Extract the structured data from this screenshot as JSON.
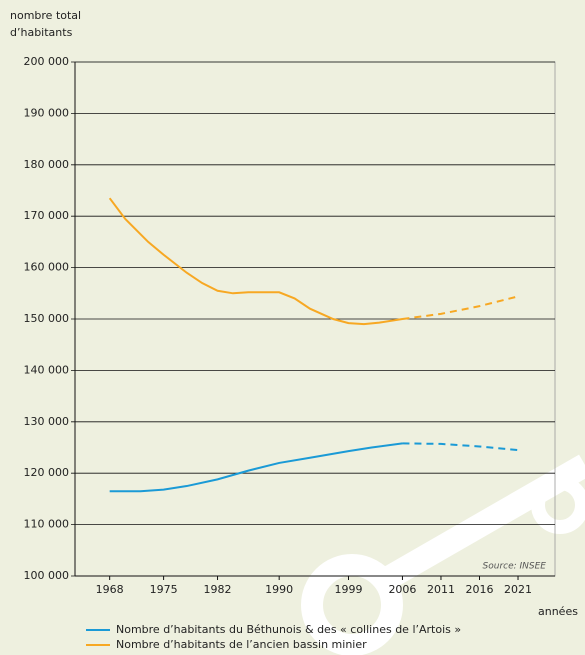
{
  "chart_data": {
    "type": "line",
    "ylabel": [
      "nombre total",
      "d’habitants"
    ],
    "xlabel": "années",
    "source": "Source: INSEE",
    "xlim": [
      1963.5,
      2025.8
    ],
    "xticks": [
      1968,
      1975,
      1982,
      1990,
      1999,
      2006,
      2011,
      2016,
      2021
    ],
    "ylim": [
      100000,
      200000
    ],
    "yticks": [
      {
        "value": 100000,
        "label": "100 000"
      },
      {
        "value": 110000,
        "label": "110 000"
      },
      {
        "value": 120000,
        "label": "120 000"
      },
      {
        "value": 130000,
        "label": "130 000"
      },
      {
        "value": 140000,
        "label": "140 000"
      },
      {
        "value": 150000,
        "label": "150 000"
      },
      {
        "value": 160000,
        "label": "160 000"
      },
      {
        "value": 170000,
        "label": "170 000"
      },
      {
        "value": 180000,
        "label": "180 000"
      },
      {
        "value": 190000,
        "label": "190 000"
      },
      {
        "value": 200000,
        "label": "200 000"
      }
    ],
    "grid": true,
    "projection_start": 2006,
    "series": [
      {
        "name": "Nombre d’habitants du Béthunois & des « collines de l’Artois »",
        "color": "#1a9ad6",
        "x": [
          1968,
          1972,
          1975,
          1978,
          1982,
          1986,
          1990,
          1994,
          1999,
          2002,
          2006,
          2011,
          2016,
          2021
        ],
        "values": [
          116500,
          116500,
          116800,
          117500,
          118800,
          120500,
          122000,
          123000,
          124300,
          125000,
          125800,
          125700,
          125200,
          124500
        ]
      },
      {
        "name": "Nombre d’habitants de l’ancien bassin minier",
        "color": "#f7a823",
        "x": [
          1968,
          1970,
          1973,
          1975,
          1978,
          1980,
          1982,
          1984,
          1986,
          1990,
          1992,
          1994,
          1997,
          1999,
          2001,
          2003,
          2006,
          2011,
          2016,
          2021
        ],
        "values": [
          173500,
          169500,
          165000,
          162500,
          159000,
          157000,
          155500,
          155000,
          155200,
          155200,
          154000,
          152000,
          150000,
          149200,
          149000,
          149300,
          150000,
          151000,
          152500,
          154400
        ]
      }
    ]
  }
}
